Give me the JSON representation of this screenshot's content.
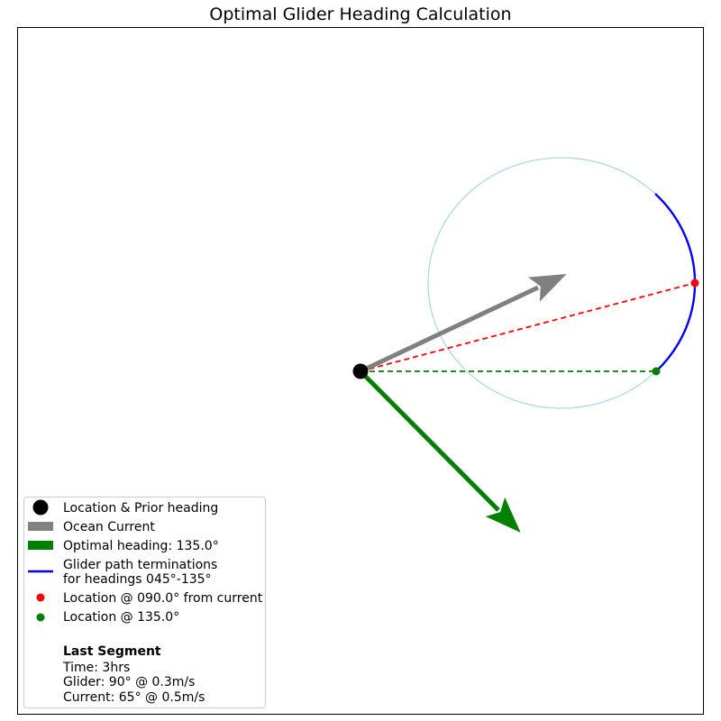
{
  "title": "Optimal Glider Heading Calculation",
  "chart_data": {
    "type": "vector-diagram",
    "axes_visible": false,
    "grid": false,
    "legend_placement": "lower-left",
    "origin": [
      0,
      0
    ],
    "ocean_current": {
      "heading_deg": 65,
      "speed_mps": 0.5,
      "color": "#808080"
    },
    "optimal_heading": {
      "heading_deg": 135.0,
      "color": "#008000"
    },
    "reachable_circle": {
      "center_heading_deg": 65,
      "color": "#add8e6"
    },
    "glider_terminations_arc": {
      "from_heading_deg": 45,
      "to_heading_deg": 135,
      "color": "#0000ff"
    },
    "location_from_current": {
      "heading_deg": 90.0,
      "color": "#ff0000"
    },
    "location_optimal": {
      "heading_deg": 135.0,
      "color": "#008000"
    }
  },
  "legend": {
    "items": [
      {
        "label": "Location & Prior heading"
      },
      {
        "label": "Ocean Current"
      },
      {
        "label": "Optimal heading: 135.0°"
      },
      {
        "label": "Glider path terminations",
        "label2": "for headings 045°-135°"
      },
      {
        "label": "Location @ 090.0° from current"
      },
      {
        "label": "Location @ 135.0°"
      }
    ],
    "last_segment": {
      "heading": "Last Segment",
      "time": "Time: 3hrs",
      "glider": "Glider: 90° @ 0.3m/s",
      "current": "Current: 65° @ 0.5m/s"
    }
  }
}
